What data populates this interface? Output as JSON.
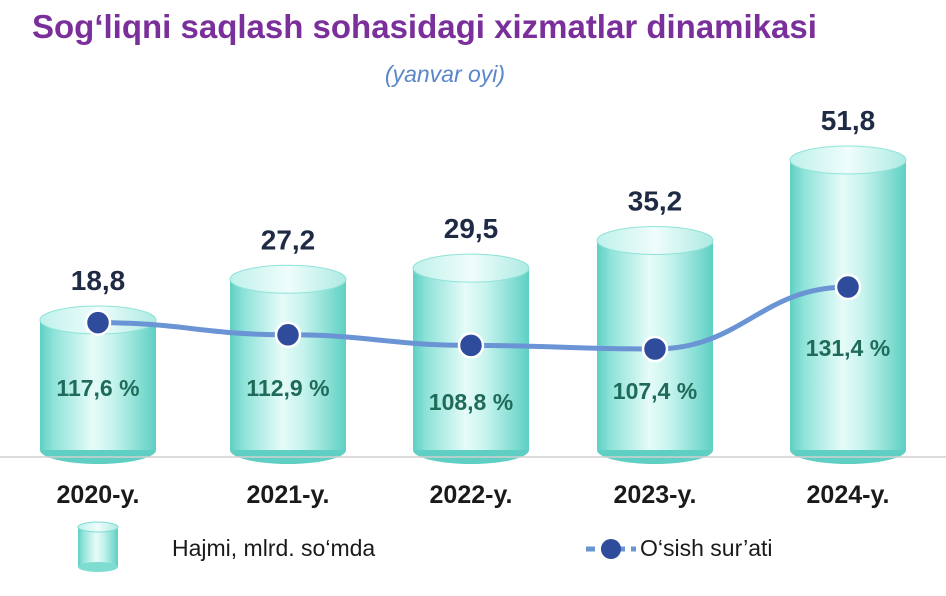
{
  "chart_data": {
    "type": "bar",
    "title": "Sog‘liqni saqlash sohasidagi xizmatlar dinamikasi",
    "subtitle": "(yanvar oyi)",
    "categories": [
      "2020-y.",
      "2021-y.",
      "2022-y.",
      "2023-y.",
      "2024-y."
    ],
    "series": [
      {
        "name": "Hajmi, mlrd. so‘mda",
        "type": "bar",
        "values": [
          18.8,
          27.2,
          29.5,
          35.2,
          51.8
        ],
        "labels": [
          "18,8",
          "27,2",
          "29,5",
          "35,2",
          "51,8"
        ]
      },
      {
        "name": "O‘sish sur’ati",
        "type": "line",
        "values": [
          117.6,
          112.9,
          108.8,
          107.4,
          131.4
        ],
        "labels": [
          "117,6 %",
          "112,9 %",
          "108,8 %",
          "107,4 %",
          "131,4 %"
        ]
      }
    ],
    "legend": "bottom",
    "grid": false,
    "colors": {
      "bar_light": "#e6fbf8",
      "bar_mid": "#a9ece4",
      "bar_dark": "#5fcfc4",
      "line": "#6a94d4",
      "marker": "#2f4c9c",
      "title": "#7a2f9a",
      "subtitle": "#5b86c9"
    }
  }
}
